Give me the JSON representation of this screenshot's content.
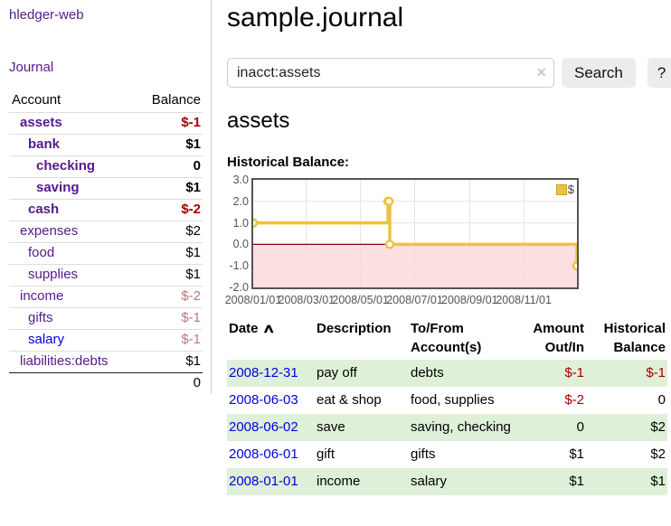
{
  "app": {
    "title": "hledger-web"
  },
  "sidebar": {
    "journal_link": "Journal",
    "table": {
      "headers": {
        "account": "Account",
        "balance": "Balance"
      },
      "rows": [
        {
          "name": "assets",
          "balance": "$-1",
          "level": 1,
          "bold": true,
          "neg": "strong"
        },
        {
          "name": "bank",
          "balance": "$1",
          "level": 2,
          "bold": true,
          "neg": "none"
        },
        {
          "name": "checking",
          "balance": "0",
          "level": 3,
          "bold": true,
          "neg": "none"
        },
        {
          "name": "saving",
          "balance": "$1",
          "level": 3,
          "bold": true,
          "neg": "none"
        },
        {
          "name": "cash",
          "balance": "$-2",
          "level": 2,
          "bold": true,
          "neg": "strong"
        },
        {
          "name": "expenses",
          "balance": "$2",
          "level": 1,
          "bold": false,
          "neg": "none"
        },
        {
          "name": "food",
          "balance": "$1",
          "level": 2,
          "bold": false,
          "neg": "none"
        },
        {
          "name": "supplies",
          "balance": "$1",
          "level": 2,
          "bold": false,
          "neg": "none"
        },
        {
          "name": "income",
          "balance": "$-2",
          "level": 1,
          "bold": false,
          "neg": "muted"
        },
        {
          "name": "gifts",
          "balance": "$-1",
          "level": 2,
          "bold": false,
          "neg": "muted"
        },
        {
          "name": "salary",
          "balance": "$-1",
          "level": 2,
          "bold": false,
          "neg": "muted",
          "unvisited": true
        },
        {
          "name": "liabilities:debts",
          "balance": "$1",
          "level": 1,
          "bold": false,
          "neg": "none"
        }
      ],
      "total": "0"
    }
  },
  "header": {
    "title": "sample.journal"
  },
  "search": {
    "value": "inacct:assets",
    "clear_icon": "×",
    "button": "Search",
    "help_button": "?"
  },
  "main": {
    "account_title": "assets",
    "chart_label": "Historical Balance:"
  },
  "chart_data": {
    "type": "line",
    "title": "Historical Balance of assets",
    "step": "after",
    "x_range": [
      "2008-01-01",
      "2008-12-31"
    ],
    "ylim": [
      -2,
      3
    ],
    "series": [
      {
        "name": "$",
        "color": "#edc240",
        "points": [
          [
            "2008-01-01",
            1
          ],
          [
            "2008-06-01",
            2
          ],
          [
            "2008-06-02",
            2
          ],
          [
            "2008-06-03",
            0
          ],
          [
            "2008-12-31",
            -1
          ]
        ]
      }
    ],
    "y_ticks": [
      {
        "v": 3,
        "label": "3.0"
      },
      {
        "v": 2,
        "label": "2.0"
      },
      {
        "v": 1,
        "label": "1.0"
      },
      {
        "v": 0,
        "label": "0.0"
      },
      {
        "v": -1,
        "label": "-1.0"
      },
      {
        "v": -2,
        "label": "-2.0"
      }
    ],
    "x_ticks": [
      {
        "date": "2008-01-01",
        "label": "2008/01/01"
      },
      {
        "date": "2008-03-01",
        "label": "2008/03/01"
      },
      {
        "date": "2008-05-01",
        "label": "2008/05/01"
      },
      {
        "date": "2008-07-01",
        "label": "2008/07/01"
      },
      {
        "date": "2008-09-01",
        "label": "2008/09/01"
      },
      {
        "date": "2008-11-01",
        "label": "2008/11/01"
      }
    ],
    "grid": true,
    "negative_fill": "rgba(255,0,0,0.12)",
    "zero_line_color": "#8b0000",
    "legend": {
      "label": "$",
      "position": "top-right"
    }
  },
  "register": {
    "headers": {
      "date": "Date",
      "description": "Description",
      "accounts": "To/From Account(s)",
      "amount": "Amount Out/In",
      "balance": "Historical Balance"
    },
    "sort_icon": "∧",
    "rows": [
      {
        "date": "2008-12-31",
        "description": "pay off",
        "accounts": "debts",
        "amount": "$-1",
        "balance": "$-1",
        "amount_neg": true,
        "balance_neg": true,
        "shade": true
      },
      {
        "date": "2008-06-03",
        "description": "eat & shop",
        "accounts": "food, supplies",
        "amount": "$-2",
        "balance": "0",
        "amount_neg": true,
        "balance_neg": false,
        "shade": false
      },
      {
        "date": "2008-06-02",
        "description": "save",
        "accounts": "saving, checking",
        "amount": "0",
        "balance": "$2",
        "amount_neg": false,
        "balance_neg": false,
        "shade": true
      },
      {
        "date": "2008-06-01",
        "description": "gift",
        "accounts": "gifts",
        "amount": "$1",
        "balance": "$2",
        "amount_neg": false,
        "balance_neg": false,
        "shade": false
      },
      {
        "date": "2008-01-01",
        "description": "income",
        "accounts": "salary",
        "amount": "$1",
        "balance": "$1",
        "amount_neg": false,
        "balance_neg": false,
        "shade": true
      }
    ]
  }
}
